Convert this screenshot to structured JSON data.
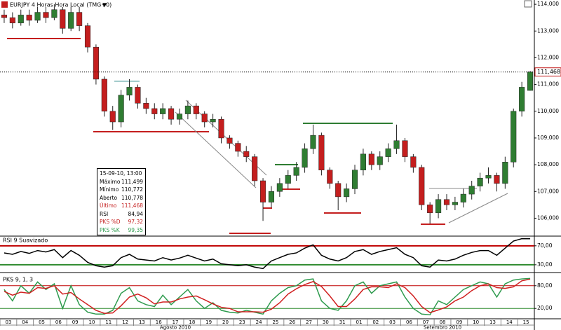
{
  "chart_data": [
    {
      "type": "candlestick",
      "title": "EURJPY 4 Horas Hora Local (TMG+0)",
      "categories": [
        "03",
        "04",
        "05",
        "06",
        "09",
        "10",
        "11",
        "12",
        "13",
        "16",
        "17",
        "18",
        "19",
        "20",
        "23",
        "24",
        "25",
        "26",
        "27",
        "30",
        "31",
        "01",
        "02",
        "03",
        "06",
        "07",
        "08",
        "09",
        "10",
        "13",
        "14",
        "15"
      ],
      "months": [
        "Agosto 2010",
        "Setembro 2010"
      ],
      "open": [
        113.6,
        113.5,
        113.3,
        113.6,
        113.4,
        113.7,
        113.5,
        113.8,
        113.1,
        113.7,
        113.2,
        112.4,
        111.2,
        110.0,
        109.6,
        110.6,
        110.9,
        110.3,
        110.1,
        109.9,
        110.1,
        109.7,
        109.9,
        110.2,
        109.9,
        109.6,
        109.7,
        109.0,
        108.8,
        108.5,
        108.3,
        107.4,
        106.6,
        107.0,
        107.3,
        107.6,
        107.9,
        108.6,
        109.1,
        107.8,
        107.3,
        106.8,
        107.1,
        107.8,
        108.4,
        108.0,
        108.3,
        108.6,
        108.9,
        108.3,
        107.9,
        106.5,
        106.2,
        106.7,
        106.5,
        106.6,
        106.9,
        107.2,
        107.5,
        107.6,
        107.3,
        108.1,
        110.0,
        110.778
      ],
      "high": [
        113.8,
        113.7,
        113.8,
        113.8,
        113.9,
        113.9,
        114.0,
        113.9,
        113.9,
        113.9,
        113.3,
        112.5,
        111.3,
        110.2,
        110.8,
        111.2,
        111.0,
        110.5,
        110.3,
        110.3,
        110.2,
        110.1,
        110.4,
        110.3,
        110.0,
        109.9,
        109.8,
        109.1,
        108.9,
        108.7,
        108.4,
        107.5,
        107.2,
        107.5,
        107.8,
        108.1,
        108.8,
        109.5,
        109.2,
        107.9,
        107.4,
        107.3,
        108.0,
        108.6,
        108.5,
        108.5,
        108.8,
        109.5,
        109.0,
        108.4,
        108.0,
        106.6,
        106.9,
        106.9,
        106.8,
        107.1,
        107.4,
        107.7,
        107.9,
        107.7,
        108.3,
        110.1,
        111.1,
        111.499
      ],
      "low": [
        113.3,
        113.1,
        113.2,
        113.2,
        113.3,
        113.3,
        113.4,
        112.9,
        113.0,
        113.0,
        112.2,
        111.0,
        109.8,
        109.3,
        109.4,
        110.4,
        110.1,
        109.9,
        109.7,
        109.7,
        109.5,
        109.5,
        109.7,
        109.7,
        109.4,
        109.4,
        108.8,
        108.6,
        108.3,
        108.1,
        107.2,
        105.9,
        106.4,
        106.8,
        107.1,
        107.4,
        107.7,
        108.4,
        107.6,
        107.1,
        106.3,
        106.6,
        106.9,
        107.6,
        107.8,
        107.8,
        108.1,
        108.4,
        108.1,
        107.7,
        106.3,
        105.8,
        106.0,
        106.3,
        106.3,
        106.4,
        106.7,
        107.0,
        107.3,
        107.0,
        107.1,
        107.9,
        109.8,
        110.772
      ],
      "close": [
        113.5,
        113.3,
        113.6,
        113.4,
        113.7,
        113.5,
        113.8,
        113.1,
        113.7,
        113.2,
        112.4,
        111.2,
        110.0,
        109.6,
        110.6,
        110.9,
        110.3,
        110.1,
        109.9,
        110.1,
        109.7,
        109.9,
        110.2,
        109.9,
        109.6,
        109.7,
        109.0,
        108.8,
        108.5,
        108.3,
        107.4,
        106.6,
        107.0,
        107.3,
        107.6,
        107.9,
        108.6,
        109.1,
        107.8,
        107.3,
        106.8,
        107.1,
        107.8,
        108.4,
        108.0,
        108.3,
        108.6,
        108.9,
        108.3,
        107.9,
        106.5,
        106.2,
        106.7,
        106.5,
        106.6,
        106.9,
        107.2,
        107.5,
        107.6,
        107.3,
        108.1,
        110.0,
        110.9,
        111.468
      ],
      "up_color": "#2f7d32",
      "down_color": "#c41e1e",
      "ylim": [
        105.33,
        114.16
      ],
      "yticks": [
        {
          "value": 106,
          "label": "106,000"
        },
        {
          "value": 107,
          "label": "107,000"
        },
        {
          "value": 108,
          "label": "108,000"
        },
        {
          "value": 109,
          "label": "109,000"
        },
        {
          "value": 110,
          "label": "110,000"
        },
        {
          "value": 111,
          "label": "111,000"
        },
        {
          "value": 112,
          "label": "112,000"
        },
        {
          "value": 113,
          "label": "113,000"
        },
        {
          "value": 114,
          "label": "114,000"
        }
      ],
      "last_label": "111,468",
      "info_box": {
        "date": "15-09-10, 13:00",
        "rows": [
          {
            "label": "Máximo",
            "value": "111,499"
          },
          {
            "label": "Mínimo",
            "value": "110,772"
          },
          {
            "label": "Aberto",
            "value": "110,778"
          },
          {
            "label": "Último",
            "value": "111,468"
          },
          {
            "label": "RSI",
            "value": "84,94"
          },
          {
            "label": "PKS %D",
            "value": "97,32"
          },
          {
            "label": "PKS %K",
            "value": "99,35"
          }
        ]
      }
    },
    {
      "type": "line",
      "title": "RSI 9 Suavizado",
      "series": [
        {
          "color": "#000000",
          "values": [
            55,
            52,
            58,
            54,
            60,
            57,
            62,
            45,
            60,
            50,
            35,
            28,
            25,
            28,
            45,
            52,
            42,
            40,
            38,
            45,
            40,
            44,
            50,
            44,
            38,
            42,
            32,
            30,
            28,
            30,
            25,
            22,
            38,
            45,
            52,
            55,
            65,
            72,
            50,
            42,
            38,
            45,
            58,
            62,
            52,
            58,
            62,
            66,
            52,
            45,
            28,
            25,
            40,
            38,
            42,
            50,
            56,
            60,
            60,
            50,
            65,
            80,
            85,
            84.94
          ]
        }
      ],
      "ylim": [
        18,
        86
      ],
      "yticks": [
        {
          "value": 70,
          "label": "70,00"
        },
        {
          "value": 30,
          "label": "30,00"
        }
      ],
      "tick_colors": [
        "#c00000",
        "#2e8b2e"
      ]
    },
    {
      "type": "line",
      "title": "PKS 9, 1, 3",
      "series": [
        {
          "color": "#2e9b4e",
          "values": [
            70,
            40,
            80,
            60,
            90,
            70,
            85,
            20,
            80,
            30,
            10,
            5,
            5,
            15,
            60,
            75,
            40,
            30,
            25,
            55,
            30,
            50,
            70,
            40,
            20,
            35,
            15,
            10,
            8,
            15,
            10,
            5,
            40,
            60,
            75,
            80,
            95,
            98,
            40,
            20,
            15,
            40,
            80,
            90,
            60,
            80,
            85,
            90,
            50,
            20,
            5,
            3,
            40,
            30,
            50,
            70,
            80,
            90,
            85,
            50,
            85,
            95,
            98,
            99.35
          ]
        },
        {
          "color": "#d02020",
          "values": [
            65,
            55,
            63,
            60,
            75,
            73,
            80,
            58,
            62,
            45,
            30,
            15,
            7,
            8,
            27,
            50,
            58,
            48,
            32,
            37,
            37,
            45,
            50,
            53,
            43,
            32,
            23,
            20,
            11,
            11,
            11,
            10,
            18,
            35,
            58,
            72,
            83,
            91,
            78,
            53,
            25,
            25,
            45,
            70,
            77,
            77,
            75,
            85,
            75,
            53,
            25,
            9,
            16,
            24,
            40,
            50,
            67,
            80,
            85,
            75,
            73,
            77,
            93,
            97.32
          ]
        }
      ],
      "ylim": [
        0,
        100
      ],
      "yticks": [
        {
          "value": 80,
          "label": "80,00"
        },
        {
          "value": 20,
          "label": "20,00"
        }
      ],
      "tick_colors": [
        "#c00000",
        "#2e8b2e"
      ]
    }
  ]
}
